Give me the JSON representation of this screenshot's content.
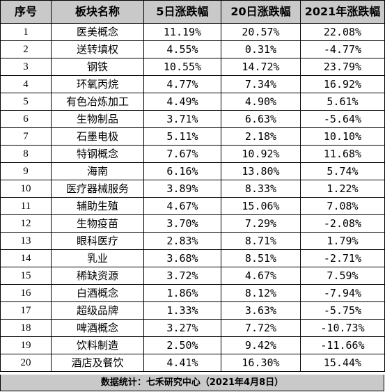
{
  "columns": [
    "序号",
    "板块名称",
    "5日涨跌幅",
    "20日涨跌幅",
    "2021年涨跌幅"
  ],
  "rows": [
    {
      "idx": "1",
      "name": "医美概念",
      "d5": "11.19%",
      "d20": "20.57%",
      "y2021": "22.08%"
    },
    {
      "idx": "2",
      "name": "送转填权",
      "d5": "4.55%",
      "d20": "0.31%",
      "y2021": "-4.77%"
    },
    {
      "idx": "3",
      "name": "钢铁",
      "d5": "10.55%",
      "d20": "14.72%",
      "y2021": "23.79%"
    },
    {
      "idx": "4",
      "name": "环氧丙烷",
      "d5": "4.77%",
      "d20": "7.34%",
      "y2021": "16.92%"
    },
    {
      "idx": "5",
      "name": "有色冶炼加工",
      "d5": "4.49%",
      "d20": "4.90%",
      "y2021": "5.61%"
    },
    {
      "idx": "6",
      "name": "生物制品",
      "d5": "3.71%",
      "d20": "6.63%",
      "y2021": "-5.64%"
    },
    {
      "idx": "7",
      "name": "石墨电极",
      "d5": "5.11%",
      "d20": "2.18%",
      "y2021": "10.10%"
    },
    {
      "idx": "8",
      "name": "特钢概念",
      "d5": "7.67%",
      "d20": "10.92%",
      "y2021": "11.68%"
    },
    {
      "idx": "9",
      "name": "海南",
      "d5": "6.16%",
      "d20": "13.80%",
      "y2021": "5.74%"
    },
    {
      "idx": "10",
      "name": "医疗器械服务",
      "d5": "3.89%",
      "d20": "8.33%",
      "y2021": "1.22%"
    },
    {
      "idx": "11",
      "name": "辅助生殖",
      "d5": "4.67%",
      "d20": "15.06%",
      "y2021": "7.08%"
    },
    {
      "idx": "12",
      "name": "生物疫苗",
      "d5": "3.70%",
      "d20": "7.29%",
      "y2021": "-2.08%"
    },
    {
      "idx": "13",
      "name": "眼科医疗",
      "d5": "2.83%",
      "d20": "8.71%",
      "y2021": "1.79%"
    },
    {
      "idx": "14",
      "name": "乳业",
      "d5": "3.68%",
      "d20": "8.51%",
      "y2021": "-2.71%"
    },
    {
      "idx": "15",
      "name": "稀缺资源",
      "d5": "3.72%",
      "d20": "4.67%",
      "y2021": "7.59%"
    },
    {
      "idx": "16",
      "name": "白酒概念",
      "d5": "1.86%",
      "d20": "8.12%",
      "y2021": "-7.94%"
    },
    {
      "idx": "17",
      "name": "超级品牌",
      "d5": "1.33%",
      "d20": "3.63%",
      "y2021": "-5.75%"
    },
    {
      "idx": "18",
      "name": "啤酒概念",
      "d5": "3.27%",
      "d20": "7.72%",
      "y2021": "-10.73%"
    },
    {
      "idx": "19",
      "name": "饮料制造",
      "d5": "2.50%",
      "d20": "9.42%",
      "y2021": "-11.66%"
    },
    {
      "idx": "20",
      "name": "酒店及餐饮",
      "d5": "4.41%",
      "d20": "16.30%",
      "y2021": "15.44%"
    }
  ],
  "footer": "数据统计：七禾研究中心（2021年4月8日）"
}
